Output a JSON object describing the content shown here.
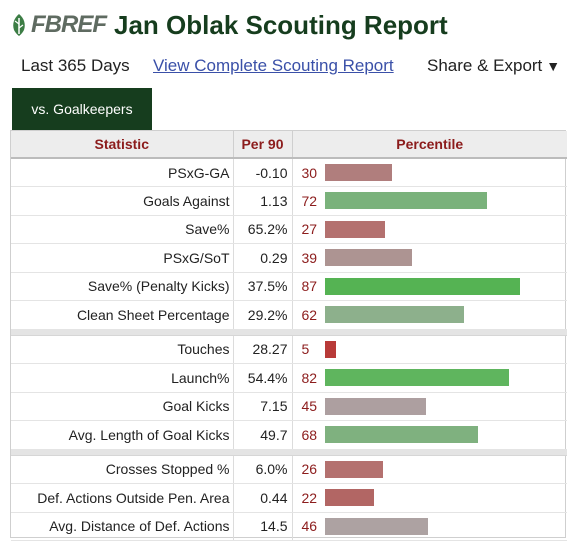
{
  "header": {
    "logo_text": "FBREF",
    "title": "Jan Oblak Scouting Report"
  },
  "subbar": {
    "period": "Last 365 Days",
    "full_report_link": "View Complete Scouting Report",
    "share_label": "Share & Export",
    "share_caret": "▼"
  },
  "tab": {
    "label": "vs. Goalkeepers"
  },
  "table": {
    "columns": [
      "Statistic",
      "Per 90",
      "Percentile"
    ],
    "groups": [
      [
        {
          "stat": "PSxG-GA",
          "per90": "-0.10",
          "percentile": 30,
          "color": "#b07e7d"
        },
        {
          "stat": "Goals Against",
          "per90": "1.13",
          "percentile": 72,
          "color": "#7ab27b"
        },
        {
          "stat": "Save%",
          "per90": "65.2%",
          "percentile": 27,
          "color": "#b4716f"
        },
        {
          "stat": "PSxG/SoT",
          "per90": "0.29",
          "percentile": 39,
          "color": "#ad9492"
        },
        {
          "stat": "Save% (Penalty Kicks)",
          "per90": "37.5%",
          "percentile": 87,
          "color": "#55b353"
        },
        {
          "stat": "Clean Sheet Percentage",
          "per90": "29.2%",
          "percentile": 62,
          "color": "#8db08c"
        }
      ],
      [
        {
          "stat": "Touches",
          "per90": "28.27",
          "percentile": 5,
          "color": "#b83a38"
        },
        {
          "stat": "Launch%",
          "per90": "54.4%",
          "percentile": 82,
          "color": "#5fb55e"
        },
        {
          "stat": "Goal Kicks",
          "per90": "7.15",
          "percentile": 45,
          "color": "#ad9fa0"
        },
        {
          "stat": "Avg. Length of Goal Kicks",
          "per90": "49.7",
          "percentile": 68,
          "color": "#7fb17f"
        }
      ],
      [
        {
          "stat": "Crosses Stopped %",
          "per90": "6.0%",
          "percentile": 26,
          "color": "#b4716f"
        },
        {
          "stat": "Def. Actions Outside Pen. Area",
          "per90": "0.44",
          "percentile": 22,
          "color": "#b26664"
        },
        {
          "stat": "Avg. Distance of Def. Actions",
          "per90": "14.5",
          "percentile": 46,
          "color": "#ada2a2"
        }
      ]
    ]
  }
}
